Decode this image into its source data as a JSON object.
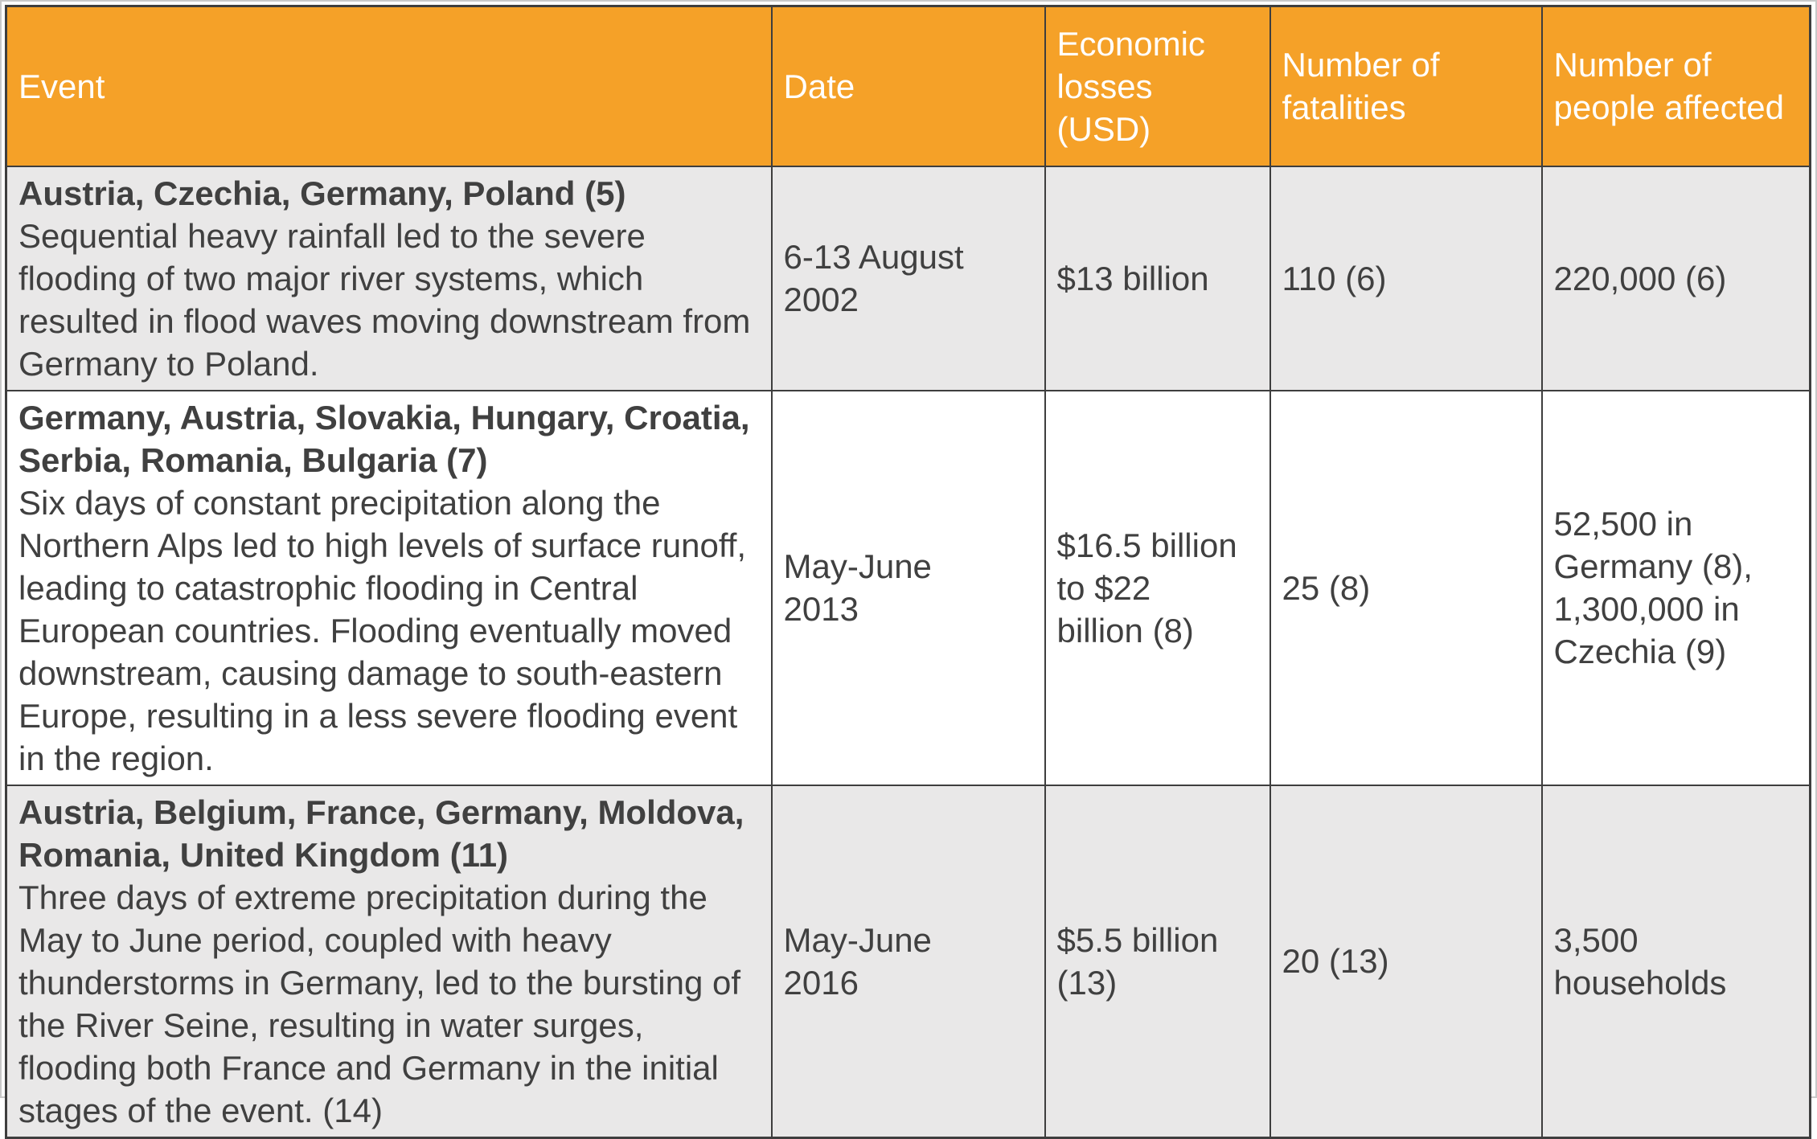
{
  "table": {
    "styles": {
      "header_bg": "#f5a128",
      "header_text_color": "#ffffff",
      "row_alt_bg": "#e9e8e8",
      "row_bg": "#ffffff",
      "border_color": "#3e3e3e",
      "text_color": "#404040"
    },
    "columns": [
      "Event",
      "Date",
      "Economic losses (USD)",
      "Number of fatalities",
      "Number of people affected"
    ],
    "rows": [
      {
        "event_title": "Austria, Czechia, Germany, Poland (5)",
        "event_description": "Sequential heavy rainfall led to the severe flooding of two major river systems, which resulted in flood waves moving downstream from Germany to Poland.",
        "date": "6-13 August\n2002",
        "economic_losses": "$13 billion",
        "fatalities": "110 (6)",
        "people_affected": "220,000 (6)"
      },
      {
        "event_title": "Germany, Austria, Slovakia, Hungary, Croatia, Serbia, Romania, Bulgaria (7)",
        "event_description": "Six days of constant precipitation along the Northern Alps led to high levels of surface runoff, leading to catastrophic flooding in Central European countries. Flooding eventually moved downstream, causing damage to south-eastern Europe, resulting in a less severe flooding event in the region.",
        "date": "May-June\n2013",
        "economic_losses": "$16.5 billion\nto $22\nbillion (8)",
        "fatalities": "25 (8)",
        "people_affected": "52,500 in\nGermany (8),\n1,300,000 in\nCzechia (9)"
      },
      {
        "event_title": "Austria, Belgium, France, Germany, Moldova, Romania, United Kingdom (11)",
        "event_description": "Three days of extreme precipitation during the May to June period, coupled with heavy thunderstorms in Germany, led to the bursting of the River Seine, resulting in water surges, flooding both France and Germany in the initial stages of the event. (14)",
        "date": "May-June\n2016",
        "economic_losses": "$5.5 billion\n(13)",
        "fatalities": "20 (13)",
        "people_affected": "3,500\nhouseholds"
      }
    ]
  }
}
